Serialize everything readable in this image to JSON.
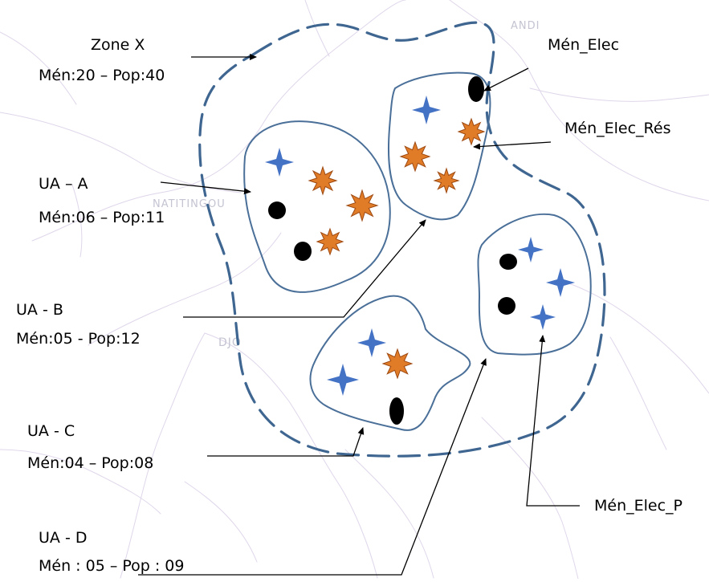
{
  "background_place_names": [
    "ANDI",
    "NATITINGOU",
    "DJO"
  ],
  "labels": {
    "zone_x": {
      "name": "Zone X",
      "stats": "Mén:20 – Pop:40"
    },
    "ua_a": {
      "name": "UA – A",
      "stats": "Mén:06 – Pop:11"
    },
    "ua_b": {
      "name": "UA - B",
      "stats": "Mén:05 - Pop:12"
    },
    "ua_c": {
      "name": "UA - C",
      "stats": "Mén:04 – Pop:08"
    },
    "ua_d": {
      "name": "UA - D",
      "stats": "Mén : 05 – Pop : 09"
    },
    "men_elec": "Mén_Elec",
    "men_elec_res": "Mén_Elec_Rés",
    "men_elec_p": "Mén_Elec_P"
  },
  "colors": {
    "zone_border": "#3f6690",
    "unit_border": "#4a6f98",
    "blue_star": "#4472c4",
    "orange_star": "#e07b28",
    "orange_star_stroke": "#9e4a12",
    "dot": "#000000",
    "map_lines": "#d5c9e4"
  }
}
